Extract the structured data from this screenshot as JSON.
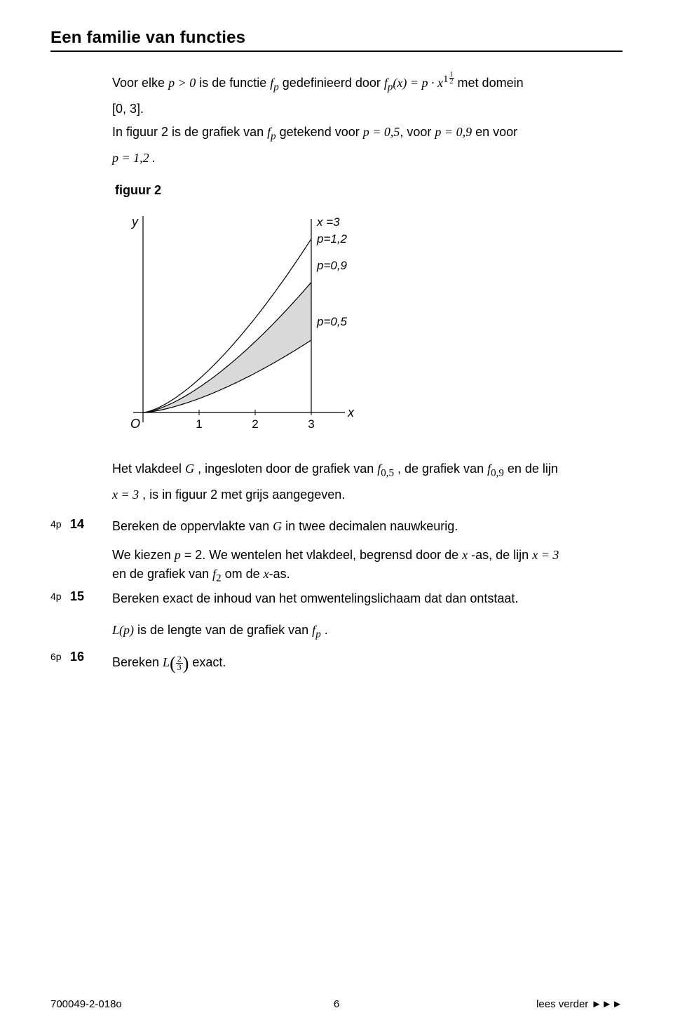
{
  "title": "Een familie van functies",
  "intro": {
    "l1_pre": "Voor elke ",
    "l1_cond": "p > 0",
    "l1_mid": " is de functie ",
    "l1_fp": "f",
    "l1_fpsub": "p",
    "l1_def": " gedefinieerd door ",
    "l1_eq_l": "f",
    "l1_eq_sub": "p",
    "l1_eq_mid": "(x) = p · x",
    "l1_exp_main": "1",
    "l1_exp_frac_t": "1",
    "l1_exp_frac_b": "2",
    "l1_post": " met domein",
    "l2": "[0, 3].",
    "l3_pre": "In figuur 2 is de grafiek van ",
    "l3_fp": "f",
    "l3_fpsub": "p",
    "l3_mid1": " getekend voor ",
    "l3_v1": "p = 0,5",
    "l3_mid2": ", voor ",
    "l3_v2": "p = 0,9",
    "l3_post": " en voor",
    "l4": "p = 1,2 ."
  },
  "figure": {
    "label": "figuur 2",
    "axis_y": "y",
    "axis_x": "x",
    "origin": "O",
    "xticks": [
      "1",
      "2",
      "3"
    ],
    "xline_lab": "x =3",
    "curves": [
      {
        "p": 1.2,
        "label": "p=1,2"
      },
      {
        "p": 0.9,
        "label": "p=0,9"
      },
      {
        "p": 0.5,
        "label": "p=0,5"
      }
    ],
    "xlim": [
      0,
      3
    ],
    "x_axis_end": 3.6,
    "colors": {
      "stroke": "#000000",
      "fill_shade": "#d9d9d9",
      "bg": "#ffffff"
    },
    "line_width": 1.2
  },
  "vlakdeel": {
    "pre": "Het vlakdeel ",
    "G": "G",
    "mid1": " , ingesloten door de grafiek van ",
    "f05": "f",
    "s05": "0,5",
    "mid2": " , de grafiek van ",
    "f09": "f",
    "s09": "0,9",
    "mid3": " en de lijn",
    "l2a": "x = 3",
    "l2b": " , is in figuur 2 met grijs aangegeven."
  },
  "q14": {
    "pts": "4p",
    "num": "14",
    "pre": "Bereken de oppervlakte van ",
    "G": "G",
    "post": " in twee decimalen nauwkeurig."
  },
  "pblock": {
    "l1_pre": "We kiezen ",
    "l1_p": "p",
    "l1_mid": " = 2. We wentelen het vlakdeel, begrensd door de ",
    "l1_x": "x",
    "l1_mid2": " -as, de lijn ",
    "l1_eq": "x = 3",
    "l2_pre": "en de grafiek van ",
    "l2_f": "f",
    "l2_sub": "2",
    "l2_mid": " om de ",
    "l2_x": "x",
    "l2_post": "-as."
  },
  "q15": {
    "pts": "4p",
    "num": "15",
    "txt": "Bereken exact de inhoud van het omwentelingslichaam dat dan ontstaat."
  },
  "lp": {
    "Lp": "L(p)",
    "mid": " is de lengte de grafiek van ",
    "mid_full": " is de lengte van de grafiek van ",
    "f": "f",
    "sub": "p",
    "post": " ."
  },
  "q16": {
    "pts": "6p",
    "num": "16",
    "pre": "Bereken ",
    "L": "L",
    "paren_l": "(",
    "frac_t": "2",
    "frac_b": "3",
    "paren_r": ")",
    "post": " exact."
  },
  "footer": {
    "left": "700049-2-018o",
    "mid": "6",
    "right": "lees verder ►►►"
  }
}
